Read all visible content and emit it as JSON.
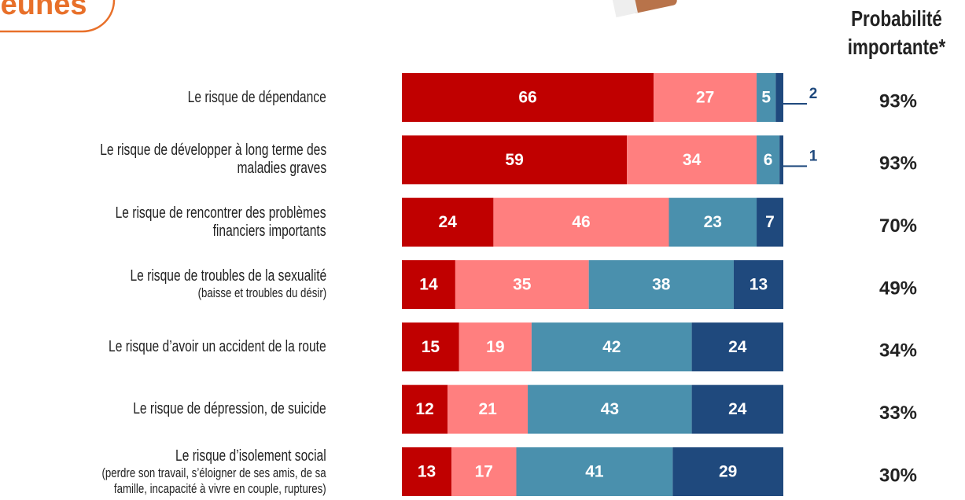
{
  "badge": "Jeunes",
  "chart_data": {
    "type": "bar",
    "orientation": "horizontal",
    "stacked": true,
    "categories": [
      "Le risque de dépendance",
      "Le risque de développer à long terme des\nmaladies graves",
      "Le risque de rencontrer des problèmes\nfinanciers importants",
      "Le risque de troubles de la sexualité",
      "Le risque d’avoir un accident de la route",
      "Le risque de dépression, de suicide",
      "Le risque d’isolement social"
    ],
    "category_notes": [
      null,
      null,
      null,
      "(baisse et troubles du désir)",
      null,
      null,
      "(perdre son travail, s’éloigner de ses amis, de sa\nfamille, incapacité à vivre en couple, ruptures)"
    ],
    "xlim": [
      0,
      100
    ],
    "series": [
      {
        "color": "#c00000",
        "values": [
          66,
          59,
          24,
          14,
          15,
          12,
          13
        ]
      },
      {
        "color": "#ff7f7f",
        "values": [
          27,
          34,
          46,
          35,
          19,
          21,
          17
        ]
      },
      {
        "color": "#4a90ad",
        "values": [
          5,
          6,
          23,
          38,
          42,
          43,
          41
        ]
      },
      {
        "color": "#1f497d",
        "values": [
          2,
          1,
          7,
          13,
          24,
          24,
          29
        ]
      }
    ],
    "totals": {
      "title": "Probabilité\nimportante*",
      "values": [
        93,
        93,
        70,
        49,
        34,
        33,
        30
      ],
      "value_labels": [
        "93%",
        "93%",
        "70%",
        "49%",
        "34%",
        "33%",
        "30%"
      ]
    }
  }
}
